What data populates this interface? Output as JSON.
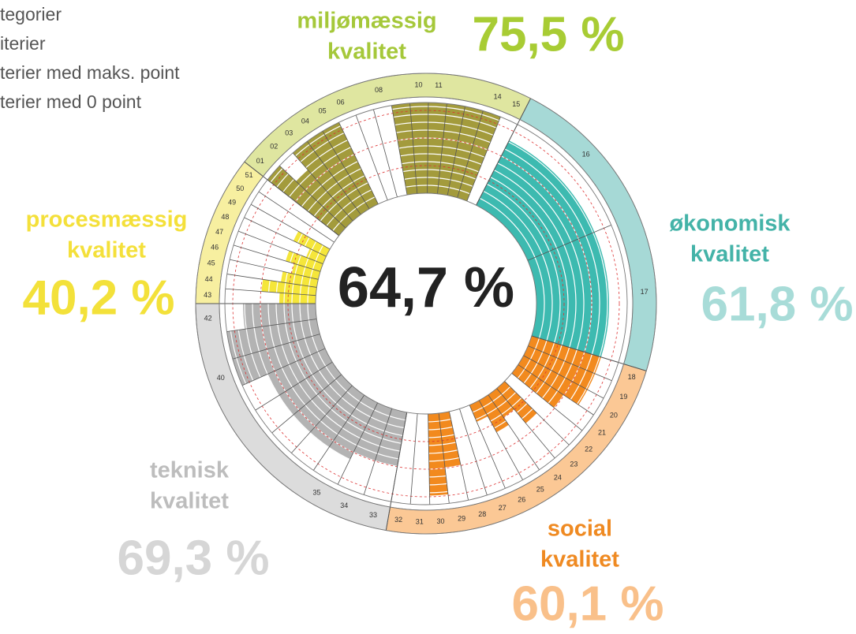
{
  "chart_data": {
    "type": "radial_bar",
    "legend": [
      "tegorier",
      "iterier",
      "terier med maks. point",
      "terier med 0 point"
    ],
    "total": {
      "value": 64.7,
      "label": "64,7 %"
    },
    "rlim": [
      0,
      100
    ],
    "groups": [
      {
        "name": [
          "procesmæssig",
          "kvalitet"
        ],
        "percent": {
          "value": 40.2,
          "label": "40,2 %"
        },
        "color": "#f5e63a",
        "ring_color": "#f7efa0",
        "text_color": "#f4e03a",
        "percent_color": "#f3e13a",
        "criteria": [
          "43",
          "44",
          "45",
          "46",
          "47",
          "48",
          "49",
          "50",
          "51"
        ],
        "values": [
          40,
          60,
          40,
          30,
          40,
          20,
          40,
          0,
          0
        ]
      },
      {
        "name": [
          "miljømæssig",
          "kvalitet"
        ],
        "percent": {
          "value": 75.5,
          "label": "75,5 %"
        },
        "color": "#a39b3c",
        "ring_color": "#dfe6a0",
        "text_color": "#a5c83a",
        "percent_color": "#a8cc34",
        "criteria": [
          "01",
          "02",
          "03",
          "04",
          "05",
          "06",
          null,
          "08",
          null,
          "10",
          "11",
          null,
          null,
          "14",
          "15"
        ],
        "values": [
          100,
          75,
          100,
          100,
          100,
          0,
          0,
          0,
          100,
          100,
          100,
          100,
          100,
          100,
          0
        ]
      },
      {
        "name": [
          "økonomisk",
          "kvalitet"
        ],
        "percent": {
          "value": 61.8,
          "label": "61,8 %"
        },
        "color": "#3dbab0",
        "ring_color": "#a6d9d6",
        "text_color": "#44b3a8",
        "percent_color": "#a8dcd8",
        "criteria": [
          "16",
          "17"
        ],
        "values": [
          80,
          80
        ]
      },
      {
        "name": [
          "social",
          "kvalitet"
        ],
        "percent": {
          "value": 60.1,
          "label": "60,1 %"
        },
        "color": "#f28a1e",
        "ring_color": "#fbc895",
        "text_color": "#ef8a22",
        "percent_color": "#f9c08a",
        "criteria": [
          "18",
          "19",
          "20",
          "21",
          "22",
          "23",
          "24",
          "25",
          "26",
          "27",
          "28",
          "29",
          "30",
          "31",
          "32"
        ],
        "values": [
          80,
          80,
          80,
          60,
          0,
          50,
          30,
          40,
          20,
          0,
          0,
          60,
          90,
          0,
          0
        ]
      },
      {
        "name": [
          "teknisk",
          "kvalitet"
        ],
        "percent": {
          "value": 69.3,
          "label": "69,3 %"
        },
        "color": "#b3b3b3",
        "ring_color": "#dcdcdc",
        "text_color": "#bdbdbd",
        "percent_color": "#d6d6d6",
        "criteria": [
          "33",
          "34",
          "35",
          null,
          null,
          null,
          null,
          "40",
          null,
          "42"
        ],
        "values": [
          60,
          60,
          70,
          70,
          70,
          70,
          70,
          100,
          100,
          80
        ]
      }
    ]
  }
}
